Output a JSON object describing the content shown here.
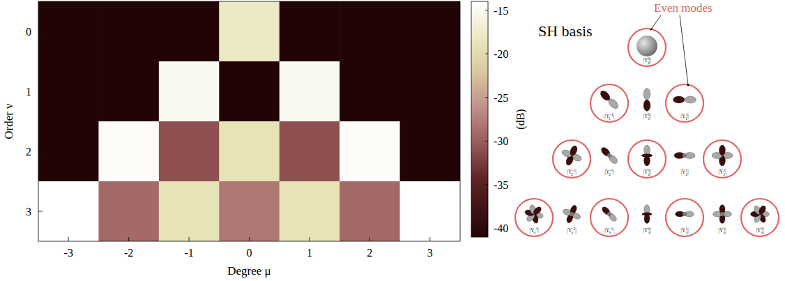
{
  "chart_data": {
    "type": "heatmap",
    "xlabel": "Degree μ",
    "ylabel": "Order ν",
    "x": [
      -3,
      -2,
      -1,
      0,
      1,
      2,
      3
    ],
    "y": [
      0,
      1,
      2,
      3
    ],
    "xlim": [
      -3.5,
      3.5
    ],
    "ylim": [
      3.5,
      -0.5
    ],
    "xticks": [
      -3,
      -2,
      -1,
      0,
      1,
      2,
      3
    ],
    "yticks": [
      0,
      1,
      2,
      3
    ],
    "cells": [
      [
        -41,
        -41,
        -41,
        -18,
        -41,
        -41,
        -41
      ],
      [
        -41,
        -41,
        -15,
        -41,
        -15,
        -41,
        -41
      ],
      [
        -41,
        -14.5,
        -31,
        -19,
        -31,
        -14.5,
        -41
      ],
      [
        -14,
        -29,
        -19,
        -28,
        -19,
        -29,
        -14
      ]
    ],
    "colorbar": {
      "lim": [
        -41,
        -14
      ],
      "ticks": [
        -40,
        -35,
        -30,
        -25,
        -20,
        -15
      ],
      "label": "(dB)"
    }
  },
  "basis": {
    "title": "SH basis",
    "annotation": "Even modes",
    "modes": [
      {
        "order": 0,
        "degree": 0,
        "even": true,
        "label": {
          "base": "|Y",
          "sup": "0",
          "sub": "0",
          "end": "|"
        }
      },
      {
        "order": 1,
        "degree": -1,
        "even": true,
        "label": {
          "base": "|Y",
          "sup": "-1",
          "sub": "1",
          "end": "|"
        }
      },
      {
        "order": 1,
        "degree": 0,
        "even": false,
        "label": {
          "base": "|Y",
          "sup": "0",
          "sub": "1",
          "end": "|"
        }
      },
      {
        "order": 1,
        "degree": 1,
        "even": true,
        "label": {
          "base": "|Y",
          "sup": "1",
          "sub": "1",
          "end": "|"
        }
      },
      {
        "order": 2,
        "degree": -2,
        "even": true,
        "label": {
          "base": "|Y",
          "sup": "-2",
          "sub": "2",
          "end": "|"
        }
      },
      {
        "order": 2,
        "degree": -1,
        "even": false,
        "label": {
          "base": "|Y",
          "sup": "-1",
          "sub": "2",
          "end": "|"
        }
      },
      {
        "order": 2,
        "degree": 0,
        "even": true,
        "label": {
          "base": "|Y",
          "sup": "0",
          "sub": "2",
          "end": "|"
        }
      },
      {
        "order": 2,
        "degree": 1,
        "even": false,
        "label": {
          "base": "|Y",
          "sup": "1",
          "sub": "2",
          "end": "|"
        }
      },
      {
        "order": 2,
        "degree": 2,
        "even": true,
        "label": {
          "base": "|Y",
          "sup": "2",
          "sub": "2",
          "end": "|"
        }
      },
      {
        "order": 3,
        "degree": -3,
        "even": true,
        "label": {
          "base": "|Y",
          "sup": "-3",
          "sub": "3",
          "end": "|"
        }
      },
      {
        "order": 3,
        "degree": -2,
        "even": false,
        "label": {
          "base": "|Y",
          "sup": "-2",
          "sub": "3",
          "end": "|"
        }
      },
      {
        "order": 3,
        "degree": -1,
        "even": true,
        "label": {
          "base": "|Y",
          "sup": "-1",
          "sub": "3",
          "end": "|"
        }
      },
      {
        "order": 3,
        "degree": 0,
        "even": false,
        "label": {
          "base": "|Y",
          "sup": "0",
          "sub": "3",
          "end": "|"
        }
      },
      {
        "order": 3,
        "degree": 1,
        "even": true,
        "label": {
          "base": "|Y",
          "sup": "1",
          "sub": "3",
          "end": "|"
        }
      },
      {
        "order": 3,
        "degree": 2,
        "even": false,
        "label": {
          "base": "|Y",
          "sup": "2",
          "sub": "3",
          "end": "|"
        }
      },
      {
        "order": 3,
        "degree": 3,
        "even": true,
        "label": {
          "base": "|Y",
          "sup": "3",
          "sub": "3",
          "end": "|"
        }
      }
    ]
  }
}
